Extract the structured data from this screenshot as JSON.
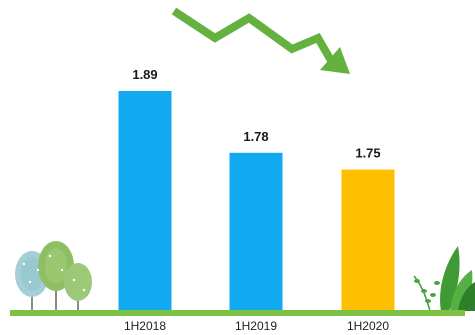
{
  "chart_data": {
    "type": "bar",
    "title": "",
    "xlabel": "",
    "ylabel": "",
    "categories": [
      "1H2018",
      "1H2019",
      "1H2020"
    ],
    "values": [
      1.89,
      1.78,
      1.75
    ],
    "value_labels": [
      "1.89",
      "1.78",
      "1.75"
    ],
    "ylim": [
      1.5,
      1.89
    ],
    "grid": false,
    "legend": "none",
    "bar_colors": [
      "#11aaf0",
      "#11aaf0",
      "#fdbf00"
    ]
  },
  "decorations": {
    "trend_arrow": "downward-zigzag-arrow",
    "trend_arrow_color": "#65b140",
    "ground_color": "#7cc143",
    "left_scenery": "trees",
    "right_scenery": "leafy-plants"
  }
}
